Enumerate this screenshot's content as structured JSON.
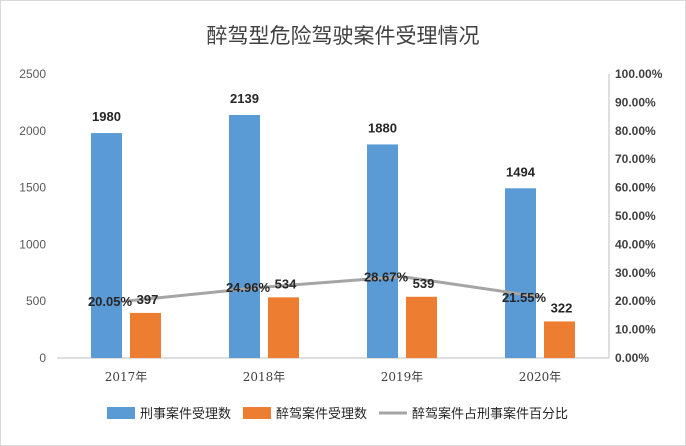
{
  "chart_data": {
    "type": "bar",
    "title": "醉驾型危险驾驶案件受理情况",
    "categories": [
      "2017年",
      "2018年",
      "2019年",
      "2020年"
    ],
    "series": [
      {
        "name": "刑事案件受理数",
        "kind": "bar",
        "axis": "left",
        "color": "#5b9bd5",
        "values": [
          1980,
          2139,
          1880,
          1494
        ],
        "labels": [
          "1980",
          "2139",
          "1880",
          "1494"
        ]
      },
      {
        "name": "醉驾案件受理数",
        "kind": "bar",
        "axis": "left",
        "color": "#ed7d31",
        "values": [
          397,
          534,
          539,
          322
        ],
        "labels": [
          "397",
          "534",
          "539",
          "322"
        ]
      },
      {
        "name": "醉驾案件占刑事案件百分比",
        "kind": "line",
        "axis": "right",
        "color": "#a5a5a5",
        "values": [
          20.05,
          24.96,
          28.67,
          21.55
        ],
        "labels": [
          "20.05%",
          "24.96%",
          "28.67%",
          "21.55%"
        ]
      }
    ],
    "ylim": [
      0,
      2500
    ],
    "yticks": [
      "0",
      "500",
      "1000",
      "1500",
      "2000",
      "2500"
    ],
    "y2lim": [
      0,
      100
    ],
    "y2ticks": [
      "0.00%",
      "10.00%",
      "20.00%",
      "30.00%",
      "40.00%",
      "50.00%",
      "60.00%",
      "70.00%",
      "80.00%",
      "90.00%",
      "100.00%"
    ],
    "grid": false,
    "legend_position": "bottom"
  }
}
